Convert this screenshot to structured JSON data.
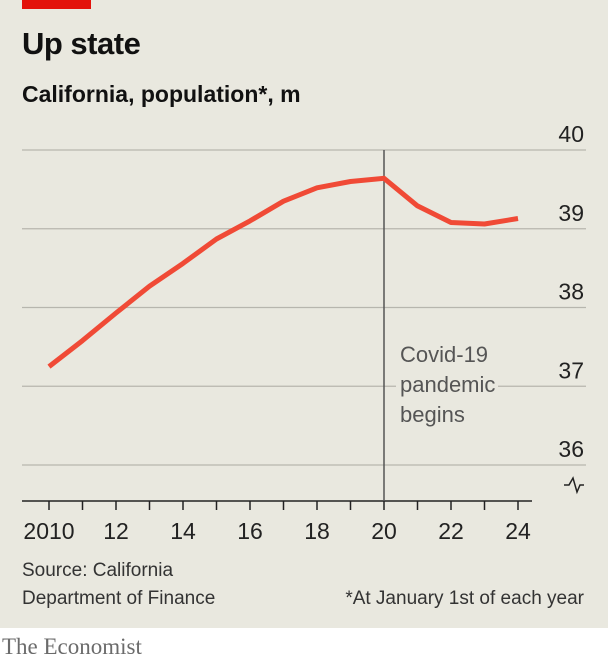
{
  "brand_color": "#e3120b",
  "line_color": "#f04a36",
  "publisher": "The Economist",
  "source": {
    "line1": "Source: California",
    "line2": "Department of Finance"
  },
  "footnote": "*At January 1st of each year",
  "chart_data": {
    "type": "line",
    "title": "Up state",
    "subtitle": "California, population*, m",
    "xlabel": "",
    "ylabel": "",
    "x": [
      2010,
      2011,
      2012,
      2013,
      2014,
      2015,
      2016,
      2017,
      2018,
      2019,
      2020,
      2021,
      2022,
      2023,
      2024
    ],
    "series": [
      {
        "values": [
          37.25,
          37.58,
          37.93,
          38.27,
          38.56,
          38.87,
          39.1,
          39.35,
          39.52,
          39.6,
          39.64,
          39.29,
          39.08,
          39.06,
          39.13
        ]
      }
    ],
    "xlim": [
      2010,
      2024
    ],
    "ylim": [
      35.5,
      40
    ],
    "y_axis_broken": true,
    "y_axis_position": "right",
    "y_ticks": [
      36,
      37,
      38,
      39,
      40
    ],
    "y_tick_labels": [
      "36",
      "37",
      "38",
      "39",
      "40"
    ],
    "x_ticks": [
      2010,
      2012,
      2014,
      2016,
      2018,
      2020,
      2022,
      2024
    ],
    "x_tick_labels": [
      "2010",
      "12",
      "14",
      "16",
      "18",
      "20",
      "22",
      "24"
    ],
    "grid": "horizontal",
    "annotation": {
      "x": 2020,
      "lines": [
        "Covid-19",
        "pandemic",
        "begins"
      ]
    }
  }
}
